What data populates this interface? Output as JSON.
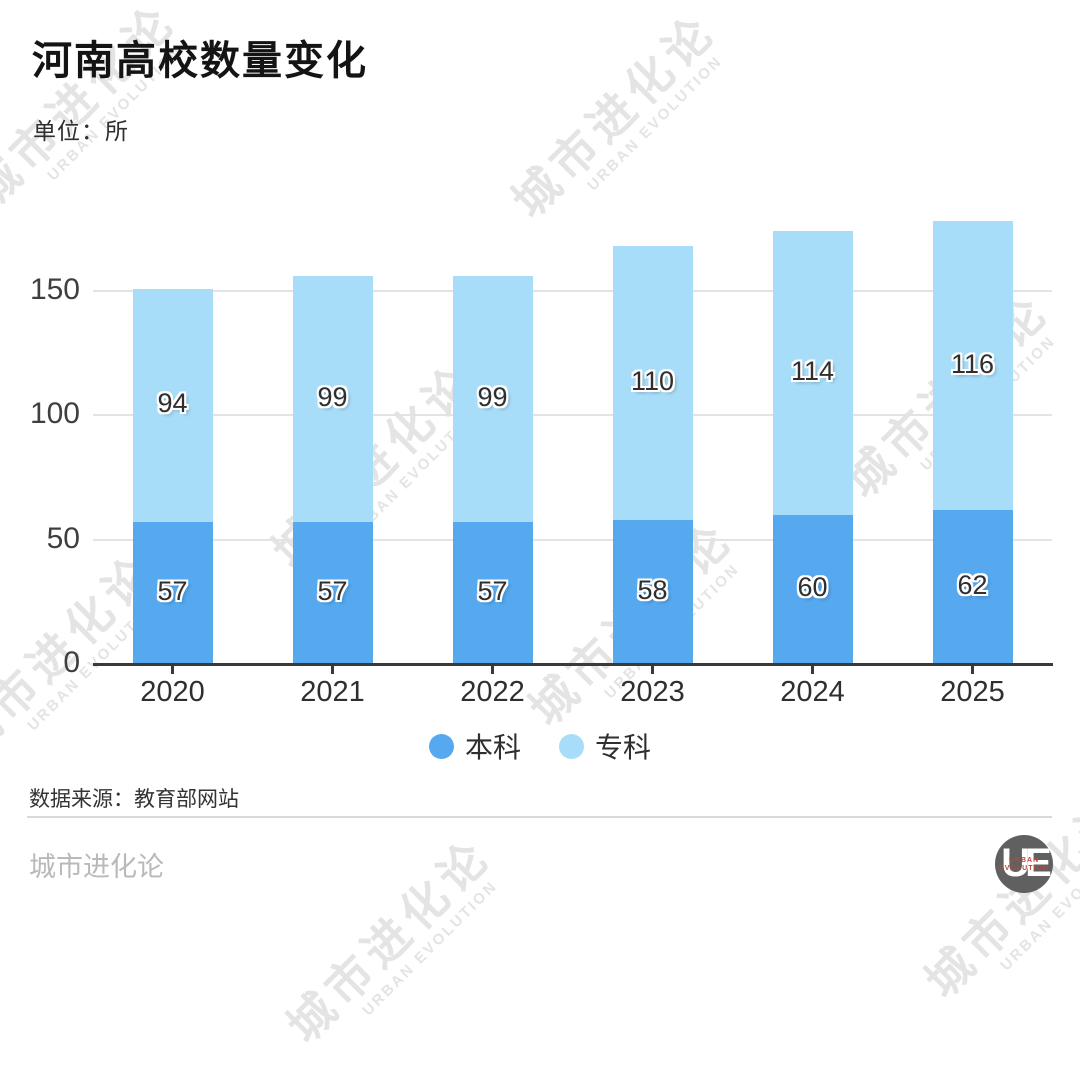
{
  "title": "河南高校数量变化",
  "unit_label": "单位：所",
  "source": "数据来源：教育部网站",
  "footer_brand": "城市进化论",
  "watermark": {
    "cn": "城市进化论",
    "en": "URBAN EVOLUTION"
  },
  "logo": {
    "monogram": "UE",
    "line1": "URBAN",
    "line2": "EVOLUTION"
  },
  "colors": {
    "benke": "#56a8ef",
    "zhuanke": "#a8ddf9",
    "grid": "#e3e3e3",
    "axis": "#3a3a3a",
    "watermark": "#e4e4e4"
  },
  "chart_data": {
    "type": "bar",
    "stacked": true,
    "title": "河南高校数量变化",
    "unit": "所",
    "categories": [
      "2020",
      "2021",
      "2022",
      "2023",
      "2024",
      "2025"
    ],
    "series": [
      {
        "name": "本科",
        "color_key": "benke",
        "values": [
          57,
          57,
          57,
          58,
          60,
          62
        ]
      },
      {
        "name": "专科",
        "color_key": "zhuanke",
        "values": [
          94,
          99,
          99,
          110,
          114,
          116
        ]
      }
    ],
    "totals": [
      151,
      156,
      156,
      168,
      174,
      178
    ],
    "yticks": [
      0,
      50,
      100,
      150
    ],
    "ylim": [
      0,
      180
    ],
    "grid": true,
    "legend_position": "bottom",
    "value_labels": "inside-center"
  }
}
